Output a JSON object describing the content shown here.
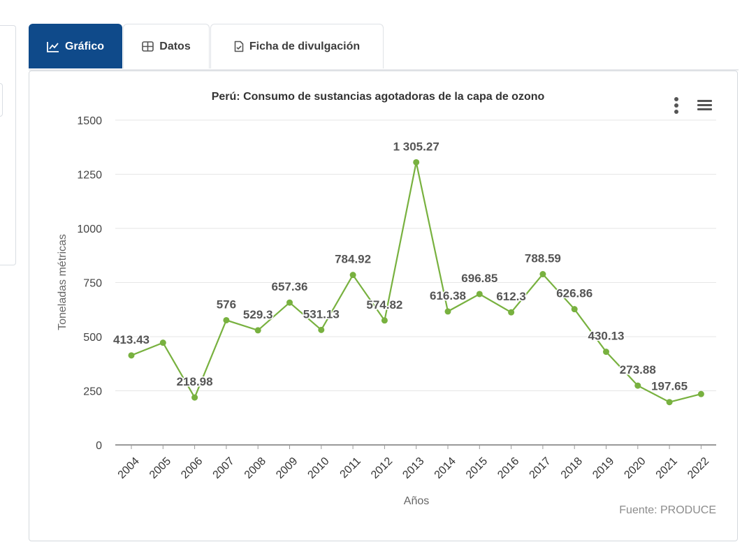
{
  "tabs": [
    {
      "label": "Gráfico",
      "icon": "line-chart-icon",
      "active": true
    },
    {
      "label": "Datos",
      "icon": "table-icon",
      "active": false
    },
    {
      "label": "Ficha de divulgación",
      "icon": "document-check-icon",
      "active": false
    }
  ],
  "menu": {
    "context_icon": "vertical-dots-icon",
    "export_icon": "hamburger-menu-icon"
  },
  "source": "Fuente: PRODUCE",
  "colors": {
    "accent": "#0f4a8a",
    "series": "#78b13f",
    "label": "#555555"
  },
  "chart_data": {
    "type": "line",
    "title": "Perú: Consumo de sustancias agotadoras de la capa de ozono",
    "xlabel": "Años",
    "ylabel": "Toneladas métricas",
    "ylim": [
      0,
      1500
    ],
    "yticks": [
      "0",
      "250",
      "500",
      "750",
      "1000",
      "1250",
      "1500"
    ],
    "categories": [
      "2004",
      "2005",
      "2006",
      "2007",
      "2008",
      "2009",
      "2010",
      "2011",
      "2012",
      "2013",
      "2014",
      "2015",
      "2016",
      "2017",
      "2018",
      "2019",
      "2020",
      "2021",
      "2022"
    ],
    "series": [
      {
        "values": [
          413.43,
          472,
          218.98,
          576,
          529.3,
          657.36,
          531.13,
          784.92,
          574.82,
          1305.27,
          616.38,
          696.85,
          612.3,
          788.59,
          626.86,
          430.13,
          273.88,
          197.65,
          235
        ],
        "labels": [
          "413.43",
          "",
          "218.98",
          "576",
          "529.3",
          "657.36",
          "531.13",
          "784.92",
          "574.82",
          "1 305.27",
          "616.38",
          "696.85",
          "612.3",
          "788.59",
          "626.86",
          "430.13",
          "273.88",
          "197.65",
          ""
        ]
      }
    ],
    "grid": true,
    "legend": "none"
  }
}
